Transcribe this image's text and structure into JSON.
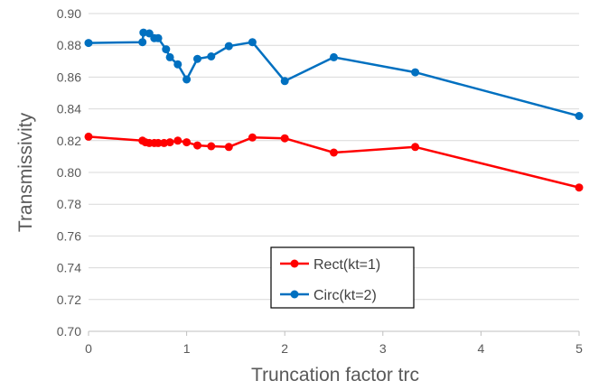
{
  "chart_data": {
    "type": "line",
    "xlabel": "Truncation factor trc",
    "ylabel": "Transmissivity",
    "xlim": [
      0,
      5
    ],
    "ylim": [
      0.7,
      0.9
    ],
    "x_ticks": [
      0,
      1,
      2,
      3,
      4,
      5
    ],
    "y_ticks": [
      0.7,
      0.72,
      0.74,
      0.76,
      0.78,
      0.8,
      0.82,
      0.84,
      0.86,
      0.88,
      0.9
    ],
    "x_tick_labels": [
      "0",
      "1",
      "2",
      "3",
      "4",
      "5"
    ],
    "y_tick_labels": [
      "0.70",
      "0.72",
      "0.74",
      "0.76",
      "0.78",
      "0.80",
      "0.82",
      "0.84",
      "0.86",
      "0.88",
      "0.90"
    ],
    "grid": "horizontal",
    "legend_position": "bottom-center",
    "series": [
      {
        "name": "Rect(kt=1)",
        "color": "#ff0000",
        "points": [
          [
            0,
            0.8225
          ],
          [
            0.55,
            0.82
          ],
          [
            0.58,
            0.819
          ],
          [
            0.62,
            0.8185
          ],
          [
            0.67,
            0.8185
          ],
          [
            0.71,
            0.8185
          ],
          [
            0.77,
            0.8185
          ],
          [
            0.83,
            0.819
          ],
          [
            0.91,
            0.82
          ],
          [
            1.0,
            0.819
          ],
          [
            1.11,
            0.817
          ],
          [
            1.25,
            0.8165
          ],
          [
            1.43,
            0.816
          ],
          [
            1.67,
            0.822
          ],
          [
            2.0,
            0.8215
          ],
          [
            2.5,
            0.8125
          ],
          [
            3.33,
            0.816
          ],
          [
            5.0,
            0.7905
          ]
        ]
      },
      {
        "name": "Circ(kt=2)",
        "color": "#0070c0",
        "points": [
          [
            0,
            0.8815
          ],
          [
            0.55,
            0.882
          ],
          [
            0.56,
            0.888
          ],
          [
            0.62,
            0.8875
          ],
          [
            0.67,
            0.8845
          ],
          [
            0.71,
            0.8845
          ],
          [
            0.79,
            0.8775
          ],
          [
            0.83,
            0.8725
          ],
          [
            0.91,
            0.868
          ],
          [
            1.0,
            0.8585
          ],
          [
            1.11,
            0.8715
          ],
          [
            1.25,
            0.873
          ],
          [
            1.43,
            0.8795
          ],
          [
            1.67,
            0.882
          ],
          [
            2.0,
            0.8575
          ],
          [
            2.5,
            0.8725
          ],
          [
            3.33,
            0.863
          ],
          [
            5.0,
            0.8355
          ]
        ]
      }
    ]
  }
}
